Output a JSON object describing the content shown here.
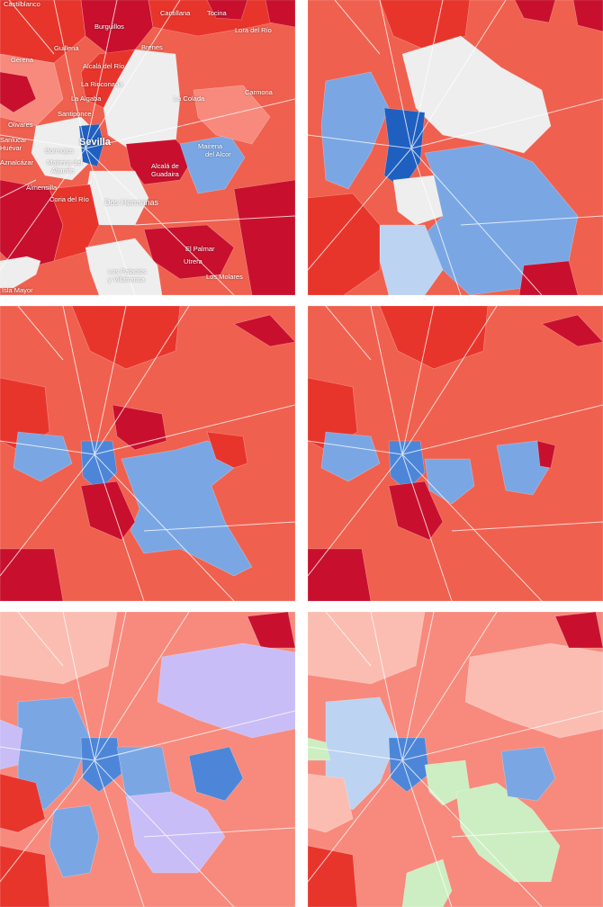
{
  "palette": {
    "base": "#f0604f",
    "dark_red": "#c8102e",
    "red": "#e8352c",
    "light_red": "#f78a7d",
    "pale_red": "#fbbdb2",
    "white": "#eeeeee",
    "blue": "#7aa7e4",
    "dark_blue": "#1f5fbf",
    "mid_blue": "#4d86d8",
    "pale_blue": "#bcd3f2",
    "purple": "#c9bdf7",
    "green": "#cdeec2",
    "road": "#ffffff"
  },
  "labels": [
    {
      "text": "Castilblanco",
      "cls": ""
    },
    {
      "text": "Burguillos",
      "cls": ""
    },
    {
      "text": "Cantillana",
      "cls": ""
    },
    {
      "text": "Tocina",
      "cls": ""
    },
    {
      "text": "Lora del Río",
      "cls": ""
    },
    {
      "text": "Guillena",
      "cls": ""
    },
    {
      "text": "Brenes",
      "cls": ""
    },
    {
      "text": "Gerena",
      "cls": ""
    },
    {
      "text": "Alcalá del Río",
      "cls": ""
    },
    {
      "text": "La Rinconada",
      "cls": ""
    },
    {
      "text": "La Algaba",
      "cls": ""
    },
    {
      "text": "La Colada",
      "cls": ""
    },
    {
      "text": "Carmona",
      "cls": ""
    },
    {
      "text": "Santiponce",
      "cls": ""
    },
    {
      "text": "Olivares",
      "cls": ""
    },
    {
      "text": "Sevilla",
      "cls": "city"
    },
    {
      "text": "Mairena",
      "cls": ""
    },
    {
      "text": "del Alcor",
      "cls": ""
    },
    {
      "text": "Bormujos",
      "cls": ""
    },
    {
      "text": "Mairena del",
      "cls": ""
    },
    {
      "text": "Aljarafe",
      "cls": ""
    },
    {
      "text": "Alcalá de",
      "cls": ""
    },
    {
      "text": "Guadaira",
      "cls": ""
    },
    {
      "text": "Almensilla",
      "cls": ""
    },
    {
      "text": "Coria del Río",
      "cls": ""
    },
    {
      "text": "Dos Hermanas",
      "cls": "mid"
    },
    {
      "text": "El Palmar",
      "cls": ""
    },
    {
      "text": "Utrera",
      "cls": ""
    },
    {
      "text": "Los Palacios",
      "cls": ""
    },
    {
      "text": "y Villafranca",
      "cls": ""
    },
    {
      "text": "Los Molares",
      "cls": ""
    },
    {
      "text": "Isla Mayor",
      "cls": ""
    },
    {
      "text": "Sanlúcar",
      "cls": ""
    },
    {
      "text": "Huévar",
      "cls": ""
    },
    {
      "text": "Aznalcázar",
      "cls": ""
    }
  ]
}
